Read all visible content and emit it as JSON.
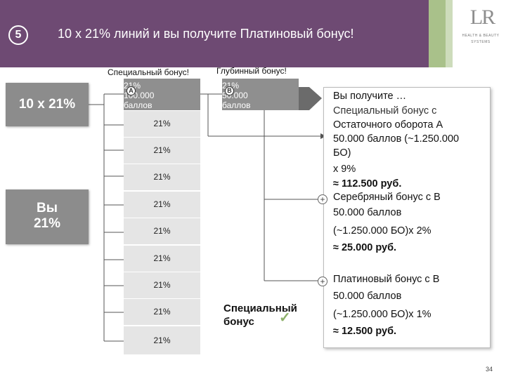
{
  "header": {
    "step_number": "5",
    "title": "10 x 21% линий и вы получите Платиновый бонус!",
    "logo_mark": "LR",
    "logo_line1": "HEALTH & BEAUTY",
    "logo_line2": "SYSTEMS"
  },
  "left_badges": {
    "lines_badge": "10 x 21%",
    "you_line1": "Вы",
    "you_line2": "21%"
  },
  "column_headers": {
    "special_bonus": "Специальный бонус!",
    "depth_bonus": "Глубинный бонус!"
  },
  "column_a": {
    "letter": "A",
    "percent": "21%",
    "points": "100.000",
    "points_unit": "баллов",
    "rows": [
      "21%",
      "21%",
      "21%",
      "21%",
      "21%",
      "21%",
      "21%",
      "21%",
      "21%"
    ]
  },
  "column_b": {
    "letter": "B",
    "percent": "21%",
    "points": "50.000",
    "points_unit": "баллов"
  },
  "info": {
    "l1": "Вы получите …",
    "l2": "Специальный бонус с",
    "l3": "Остаточного оборота А",
    "l4": "50.000 баллов (~1.250.000",
    "l5": "БО)",
    "l6": "х 9%",
    "l7": "≈ 112.500 руб.",
    "l8": "Серебряный бонус с В",
    "l9": "50.000 баллов",
    "l10": "(~1.250.000 БО)х 2%",
    "l11": "≈ 25.000 руб.",
    "l12": "Платиновый бонус с В",
    "l13": "50.000 баллов",
    "l14": "(~1.250.000 БО)х 1%",
    "l15": "≈ 12.500 руб."
  },
  "special_label": {
    "line1": "Специальный",
    "line2": "бонус"
  },
  "page_number": "34",
  "colors": {
    "header_bg": "#6e4a73",
    "accent_green": "#a9c18a",
    "box_gray": "#8c8c8c",
    "cell_gray": "#e5e5e5"
  }
}
